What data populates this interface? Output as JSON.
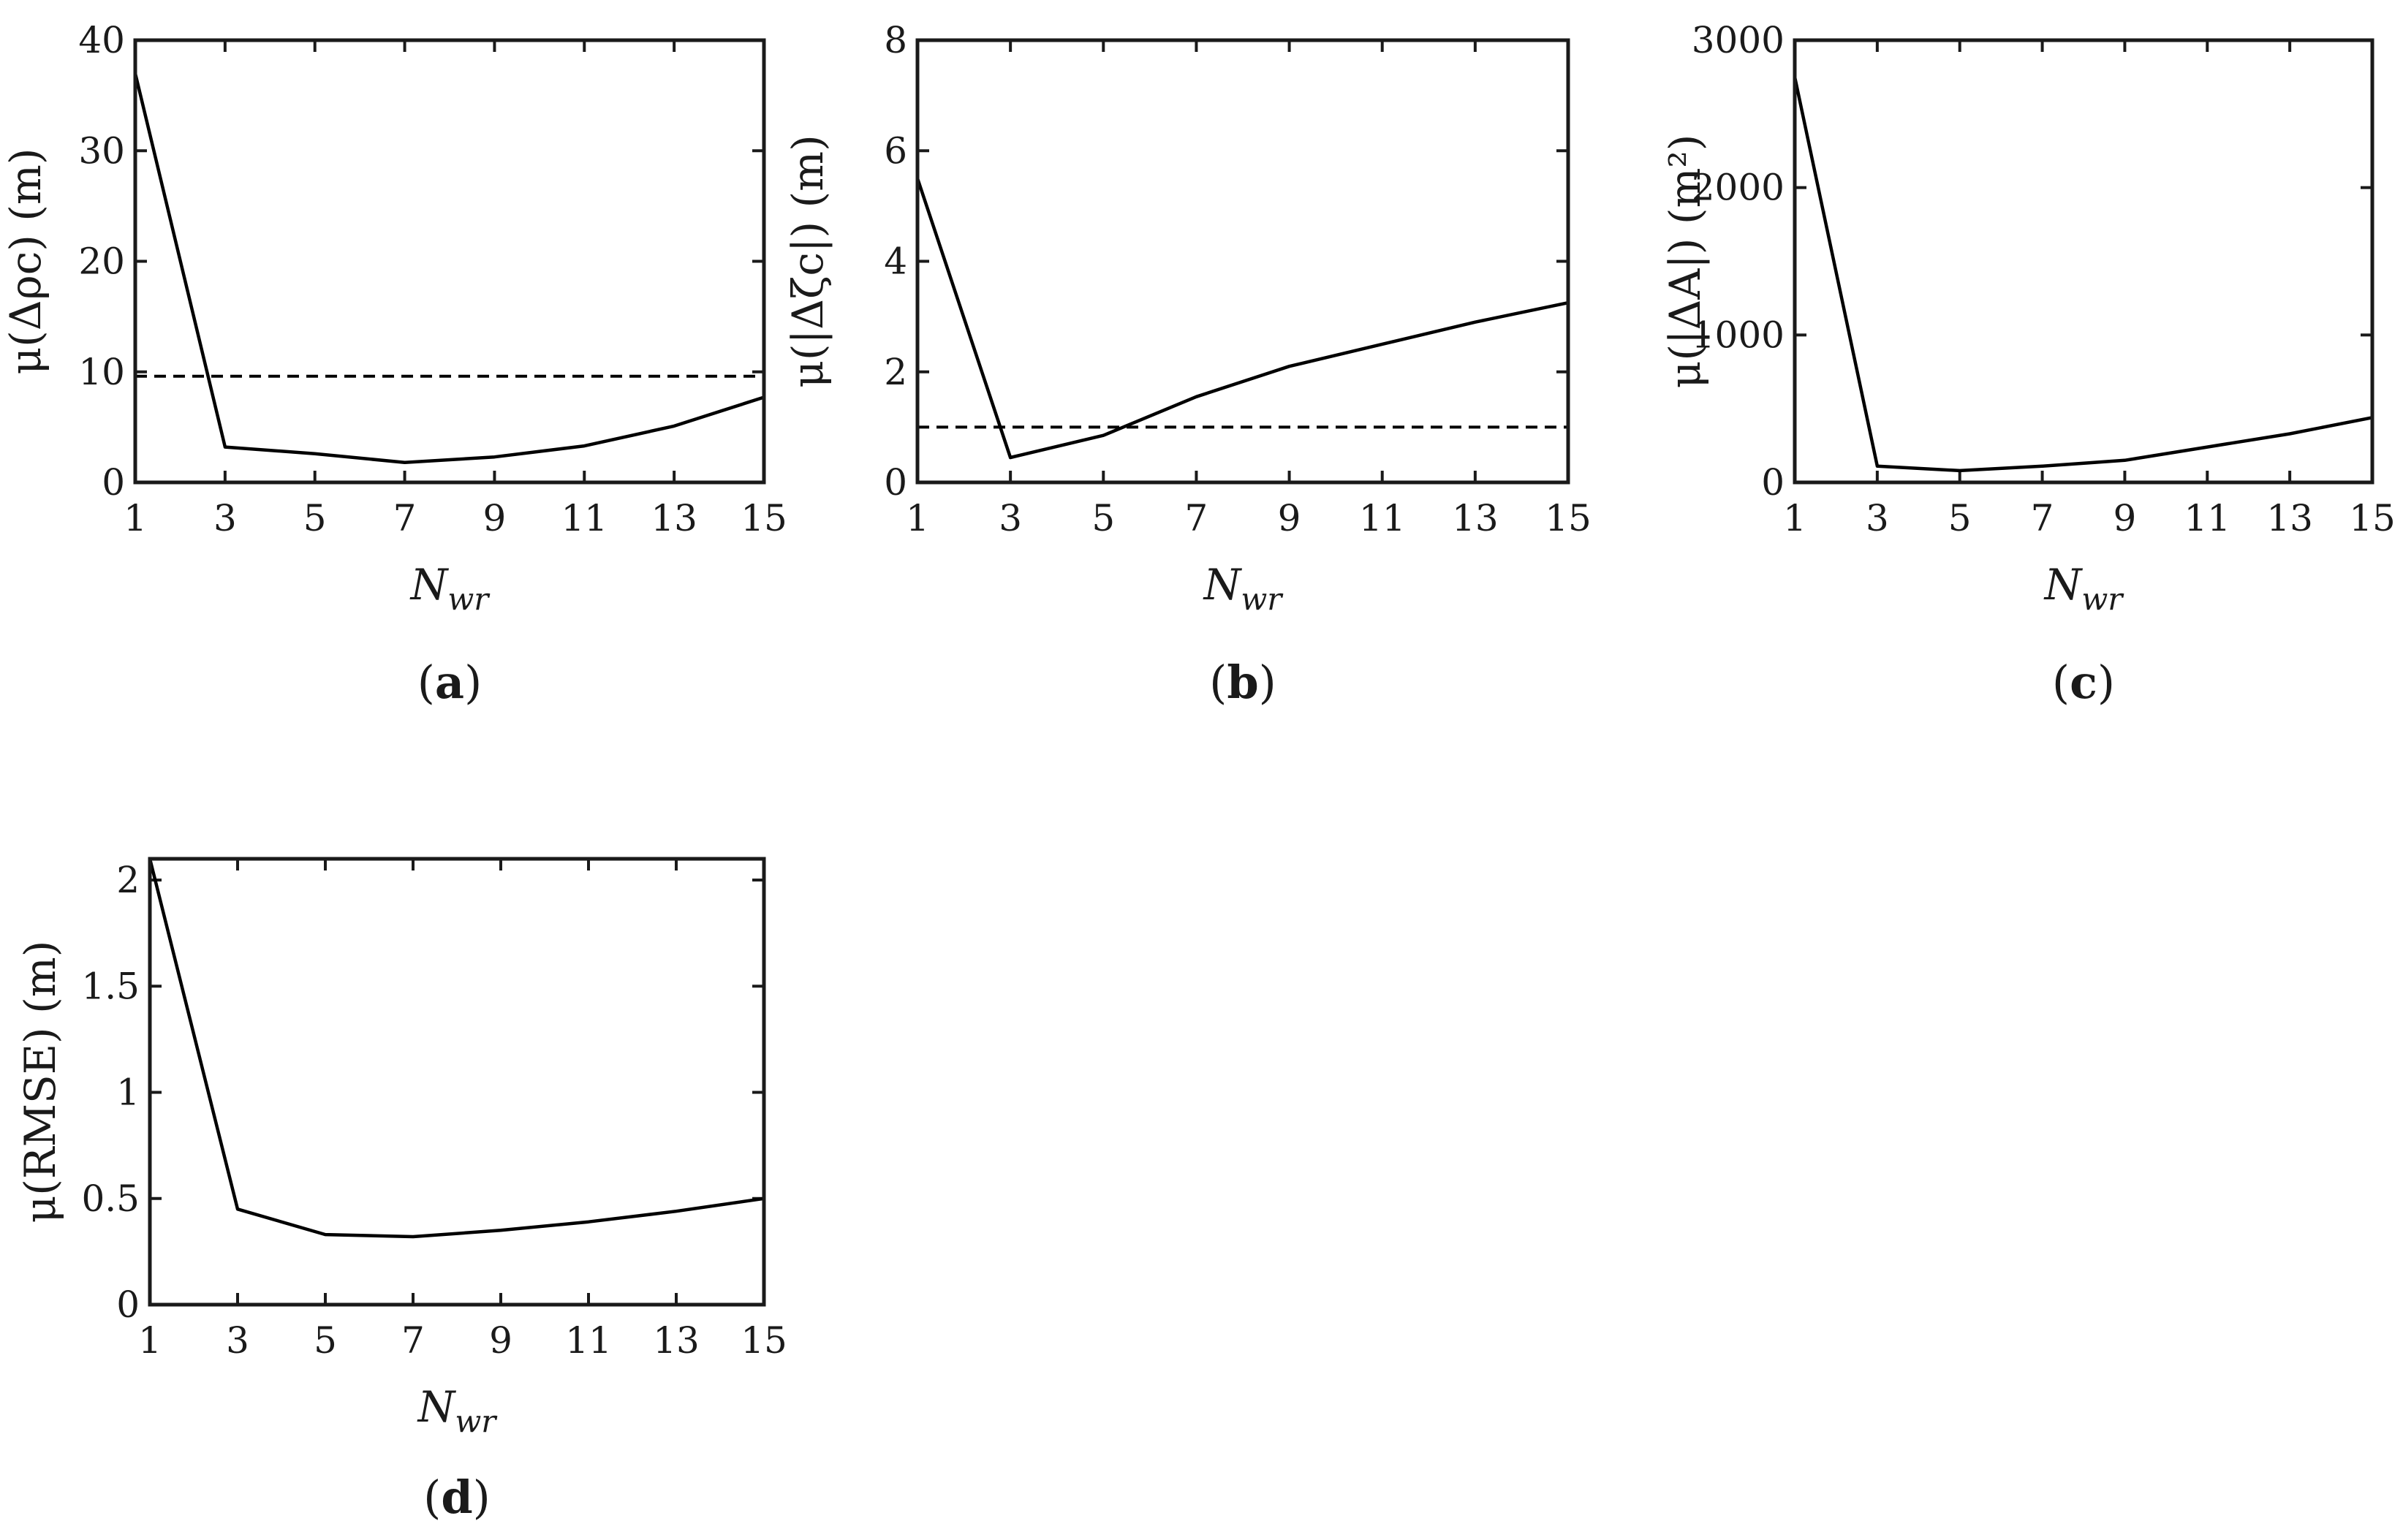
{
  "chart_data": [
    {
      "id": "a",
      "type": "line",
      "panel_label": "a",
      "xlabel_main": "N",
      "xlabel_sub": "wr",
      "ylabel": "μ(Δρc) (m)",
      "xlim": [
        1,
        15
      ],
      "ylim": [
        0,
        40
      ],
      "xticks": [
        1,
        3,
        5,
        7,
        9,
        11,
        13,
        15
      ],
      "yticks": [
        0,
        10,
        20,
        30,
        40
      ],
      "x": [
        1,
        3,
        5,
        7,
        9,
        11,
        13,
        15
      ],
      "series": [
        {
          "values": [
            37,
            3.2,
            2.6,
            1.8,
            2.3,
            3.3,
            5.1,
            7.7
          ]
        }
      ],
      "reference_line": 9.6
    },
    {
      "id": "b",
      "type": "line",
      "panel_label": "b",
      "xlabel_main": "N",
      "xlabel_sub": "wr",
      "ylabel": "μ(|Δζc|) (m)",
      "xlim": [
        1,
        15
      ],
      "ylim": [
        0,
        8
      ],
      "xticks": [
        1,
        3,
        5,
        7,
        9,
        11,
        13,
        15
      ],
      "yticks": [
        0,
        2,
        4,
        6,
        8
      ],
      "x": [
        1,
        3,
        5,
        7,
        9,
        11,
        13,
        15
      ],
      "series": [
        {
          "values": [
            5.5,
            0.45,
            0.85,
            1.55,
            2.1,
            2.5,
            2.9,
            3.25
          ]
        }
      ],
      "reference_line": 1.0
    },
    {
      "id": "c",
      "type": "line",
      "panel_label": "c",
      "xlabel_main": "N",
      "xlabel_sub": "wr",
      "ylabel": "μ(|ΔA|) (m²)",
      "xlim": [
        1,
        15
      ],
      "ylim": [
        0,
        3000
      ],
      "xticks": [
        1,
        3,
        5,
        7,
        9,
        11,
        13,
        15
      ],
      "yticks": [
        0,
        1000,
        2000,
        3000
      ],
      "x": [
        1,
        3,
        5,
        7,
        9,
        11,
        13,
        15
      ],
      "series": [
        {
          "values": [
            2750,
            110,
            80,
            110,
            150,
            240,
            330,
            440
          ]
        }
      ],
      "reference_line": 0
    },
    {
      "id": "d",
      "type": "line",
      "panel_label": "d",
      "xlabel_main": "N",
      "xlabel_sub": "wr",
      "ylabel": "μ(RMSE) (m)",
      "xlim": [
        1,
        15
      ],
      "ylim": [
        0,
        2.1
      ],
      "xticks": [
        1,
        3,
        5,
        7,
        9,
        11,
        13,
        15
      ],
      "yticks": [
        0,
        0.5,
        1,
        1.5,
        2
      ],
      "x": [
        1,
        3,
        5,
        7,
        9,
        11,
        13,
        15
      ],
      "series": [
        {
          "values": [
            2.1,
            0.45,
            0.33,
            0.32,
            0.35,
            0.39,
            0.44,
            0.5
          ]
        }
      ],
      "reference_line": null
    }
  ]
}
